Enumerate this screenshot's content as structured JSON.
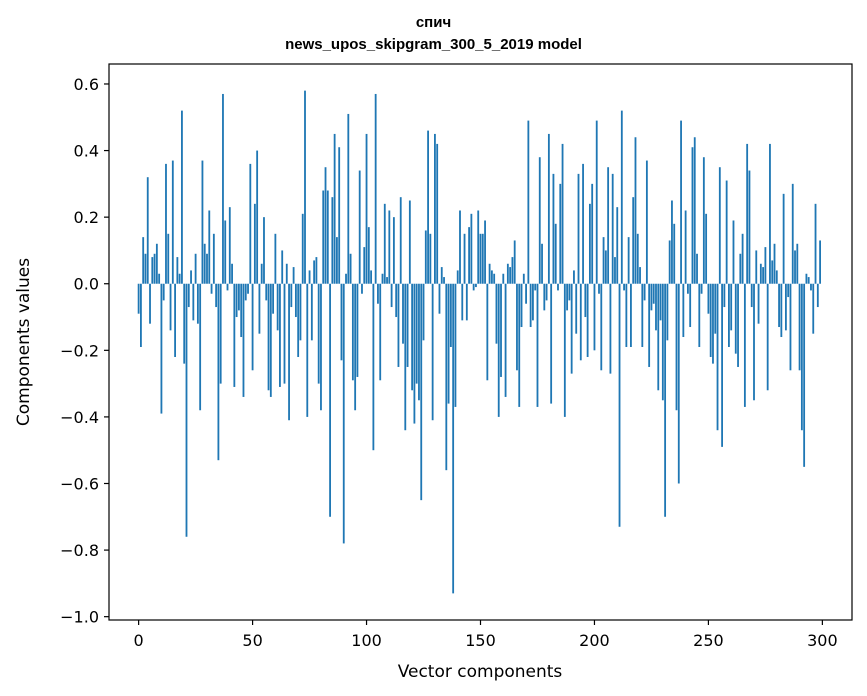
{
  "chart_data": {
    "type": "bar",
    "title_lines": [
      "спич",
      "news_upos_skipgram_300_5_2019 model"
    ],
    "xlabel": "Vector components",
    "ylabel": "Components values",
    "xlim": [
      -13,
      313
    ],
    "ylim": [
      -1.01,
      0.66
    ],
    "x_ticks": [
      0,
      50,
      100,
      150,
      200,
      250,
      300
    ],
    "y_ticks": [
      -1.0,
      -0.8,
      -0.6,
      -0.4,
      -0.2,
      0.0,
      0.2,
      0.4,
      0.6
    ],
    "grid": false,
    "bar_color": "#1f77b4",
    "values": [
      -0.09,
      -0.19,
      0.14,
      0.09,
      0.32,
      -0.12,
      0.08,
      0.09,
      0.12,
      0.03,
      -0.39,
      -0.05,
      0.36,
      0.15,
      -0.14,
      0.37,
      -0.22,
      0.08,
      0.03,
      0.52,
      -0.24,
      -0.76,
      -0.07,
      0.04,
      -0.11,
      0.09,
      -0.12,
      -0.38,
      0.37,
      0.12,
      0.09,
      0.22,
      -0.03,
      0.15,
      -0.07,
      -0.53,
      -0.3,
      0.57,
      0.19,
      -0.02,
      0.23,
      0.06,
      -0.31,
      -0.1,
      -0.08,
      -0.16,
      -0.34,
      -0.05,
      -0.03,
      0.36,
      -0.26,
      0.24,
      0.4,
      -0.15,
      0.06,
      0.2,
      -0.05,
      -0.32,
      -0.34,
      -0.09,
      0.15,
      -0.14,
      -0.31,
      0.1,
      -0.3,
      0.06,
      -0.41,
      -0.07,
      0.05,
      -0.1,
      -0.22,
      -0.17,
      0.21,
      0.58,
      -0.4,
      0.04,
      -0.17,
      0.07,
      0.08,
      -0.3,
      -0.38,
      0.28,
      0.35,
      0.28,
      -0.7,
      0.26,
      0.45,
      0.14,
      0.41,
      -0.23,
      -0.78,
      0.03,
      0.51,
      0.09,
      -0.29,
      -0.38,
      -0.28,
      0.34,
      -0.03,
      0.11,
      0.45,
      0.17,
      0.04,
      -0.5,
      0.57,
      -0.06,
      -0.29,
      0.03,
      0.24,
      0.02,
      0.22,
      -0.07,
      0.2,
      -0.1,
      -0.25,
      0.26,
      -0.18,
      -0.44,
      -0.25,
      0.25,
      -0.32,
      -0.42,
      -0.3,
      -0.35,
      -0.65,
      -0.17,
      0.16,
      0.46,
      0.15,
      -0.41,
      0.45,
      0.42,
      -0.09,
      0.05,
      0.02,
      -0.56,
      -0.36,
      -0.19,
      -0.93,
      -0.37,
      0.04,
      0.22,
      -0.11,
      0.15,
      -0.11,
      0.17,
      0.21,
      -0.02,
      -0.01,
      0.22,
      0.15,
      0.15,
      0.19,
      -0.29,
      0.06,
      0.04,
      0.03,
      -0.18,
      -0.4,
      -0.28,
      0.03,
      -0.34,
      0.06,
      0.05,
      0.08,
      0.13,
      -0.26,
      -0.37,
      -0.13,
      0.03,
      -0.06,
      0.49,
      -0.13,
      -0.11,
      -0.02,
      -0.37,
      0.38,
      0.12,
      -0.08,
      -0.05,
      0.45,
      -0.36,
      0.33,
      0.18,
      -0.02,
      0.3,
      0.42,
      -0.4,
      -0.08,
      -0.05,
      -0.27,
      0.04,
      -0.15,
      0.33,
      -0.23,
      0.36,
      -0.1,
      -0.22,
      0.24,
      0.3,
      -0.2,
      0.49,
      -0.03,
      -0.26,
      0.14,
      0.1,
      0.35,
      -0.27,
      0.33,
      0.08,
      0.23,
      -0.73,
      0.52,
      -0.02,
      -0.19,
      0.14,
      -0.19,
      0.26,
      0.44,
      0.15,
      0.05,
      -0.19,
      -0.05,
      0.37,
      -0.25,
      -0.08,
      -0.06,
      -0.14,
      -0.32,
      -0.11,
      -0.35,
      -0.7,
      -0.17,
      0.13,
      0.25,
      0.18,
      -0.38,
      -0.6,
      0.49,
      -0.16,
      0.22,
      -0.03,
      -0.13,
      0.41,
      0.44,
      0.09,
      -0.19,
      -0.03,
      0.38,
      0.21,
      -0.09,
      -0.22,
      -0.24,
      -0.15,
      -0.44,
      0.35,
      -0.49,
      -0.07,
      0.31,
      -0.19,
      -0.14,
      0.19,
      -0.21,
      -0.25,
      0.09,
      0.15,
      -0.37,
      0.42,
      0.34,
      -0.07,
      -0.35,
      0.1,
      -0.12,
      0.06,
      0.05,
      0.11,
      -0.32,
      0.42,
      0.07,
      0.12,
      0.04,
      -0.13,
      -0.16,
      0.27,
      -0.14,
      -0.04,
      -0.26,
      0.3,
      0.1,
      0.12,
      -0.26,
      -0.44,
      -0.55,
      0.03,
      0.02,
      -0.02,
      -0.15,
      0.24,
      -0.07,
      0.13
    ]
  }
}
